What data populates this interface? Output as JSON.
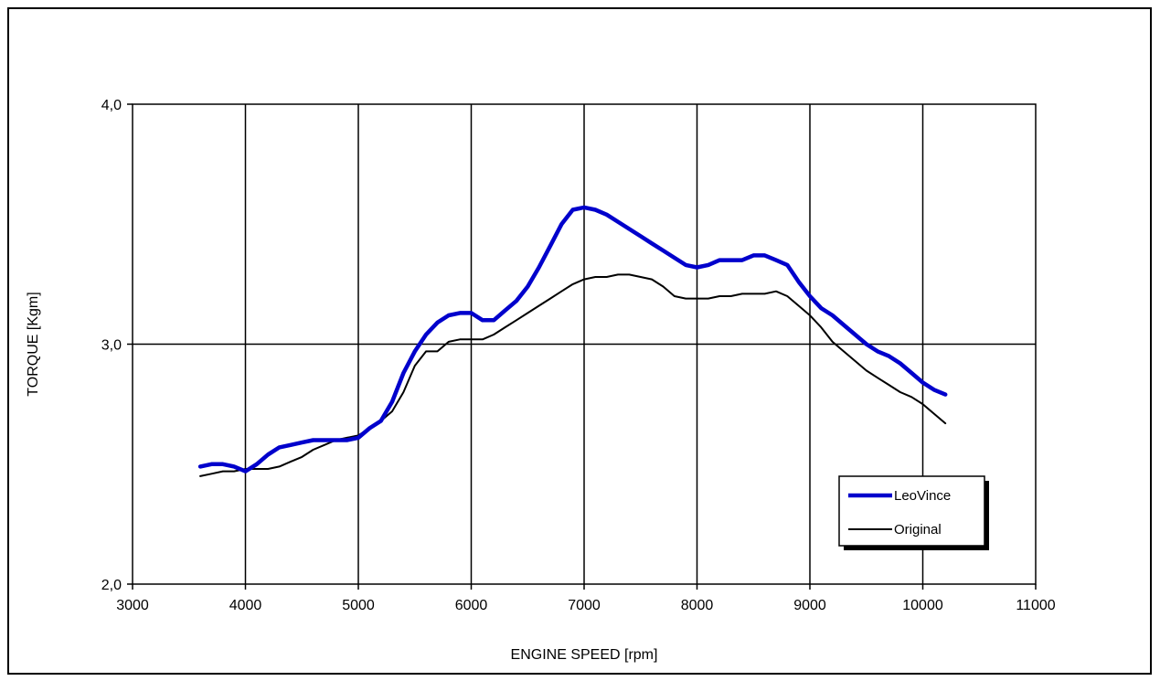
{
  "chart_data": {
    "type": "line",
    "title": "",
    "xlabel": "ENGINE SPEED [rpm]",
    "ylabel": "TORQUE [Kgm]",
    "xlim": [
      3000,
      11000
    ],
    "ylim": [
      2.0,
      4.0
    ],
    "x_ticks": [
      3000,
      4000,
      5000,
      6000,
      7000,
      8000,
      9000,
      10000,
      11000
    ],
    "x_tick_labels": [
      "3000",
      "4000",
      "5000",
      "6000",
      "7000",
      "8000",
      "9000",
      "10000",
      "11000"
    ],
    "y_ticks": [
      2.0,
      3.0,
      4.0
    ],
    "y_tick_labels": [
      "2,0",
      "3,0",
      "4,0"
    ],
    "grid": true,
    "legend_position": "bottom-right",
    "series": [
      {
        "name": "LeoVince",
        "color": "#0000CC",
        "points": [
          [
            3600,
            2.49
          ],
          [
            3700,
            2.5
          ],
          [
            3800,
            2.5
          ],
          [
            3900,
            2.49
          ],
          [
            4000,
            2.47
          ],
          [
            4100,
            2.5
          ],
          [
            4200,
            2.54
          ],
          [
            4300,
            2.57
          ],
          [
            4400,
            2.58
          ],
          [
            4500,
            2.59
          ],
          [
            4600,
            2.6
          ],
          [
            4700,
            2.6
          ],
          [
            4800,
            2.6
          ],
          [
            4900,
            2.6
          ],
          [
            5000,
            2.61
          ],
          [
            5100,
            2.65
          ],
          [
            5200,
            2.68
          ],
          [
            5300,
            2.76
          ],
          [
            5400,
            2.88
          ],
          [
            5500,
            2.97
          ],
          [
            5600,
            3.04
          ],
          [
            5700,
            3.09
          ],
          [
            5800,
            3.12
          ],
          [
            5900,
            3.13
          ],
          [
            6000,
            3.13
          ],
          [
            6100,
            3.1
          ],
          [
            6200,
            3.1
          ],
          [
            6300,
            3.14
          ],
          [
            6400,
            3.18
          ],
          [
            6500,
            3.24
          ],
          [
            6600,
            3.32
          ],
          [
            6700,
            3.41
          ],
          [
            6800,
            3.5
          ],
          [
            6900,
            3.56
          ],
          [
            7000,
            3.57
          ],
          [
            7100,
            3.56
          ],
          [
            7200,
            3.54
          ],
          [
            7300,
            3.51
          ],
          [
            7400,
            3.48
          ],
          [
            7500,
            3.45
          ],
          [
            7600,
            3.42
          ],
          [
            7700,
            3.39
          ],
          [
            7800,
            3.36
          ],
          [
            7900,
            3.33
          ],
          [
            8000,
            3.32
          ],
          [
            8100,
            3.33
          ],
          [
            8200,
            3.35
          ],
          [
            8300,
            3.35
          ],
          [
            8400,
            3.35
          ],
          [
            8500,
            3.37
          ],
          [
            8600,
            3.37
          ],
          [
            8700,
            3.35
          ],
          [
            8800,
            3.33
          ],
          [
            8900,
            3.26
          ],
          [
            9000,
            3.2
          ],
          [
            9100,
            3.15
          ],
          [
            9200,
            3.12
          ],
          [
            9300,
            3.08
          ],
          [
            9400,
            3.04
          ],
          [
            9500,
            3.0
          ],
          [
            9600,
            2.97
          ],
          [
            9700,
            2.95
          ],
          [
            9800,
            2.92
          ],
          [
            9900,
            2.88
          ],
          [
            10000,
            2.84
          ],
          [
            10100,
            2.81
          ],
          [
            10200,
            2.79
          ]
        ]
      },
      {
        "name": "Original",
        "color": "#000000",
        "points": [
          [
            3600,
            2.45
          ],
          [
            3700,
            2.46
          ],
          [
            3800,
            2.47
          ],
          [
            3900,
            2.47
          ],
          [
            4000,
            2.48
          ],
          [
            4100,
            2.48
          ],
          [
            4200,
            2.48
          ],
          [
            4300,
            2.49
          ],
          [
            4400,
            2.51
          ],
          [
            4500,
            2.53
          ],
          [
            4600,
            2.56
          ],
          [
            4700,
            2.58
          ],
          [
            4800,
            2.6
          ],
          [
            4900,
            2.61
          ],
          [
            5000,
            2.62
          ],
          [
            5100,
            2.65
          ],
          [
            5200,
            2.68
          ],
          [
            5300,
            2.72
          ],
          [
            5400,
            2.8
          ],
          [
            5500,
            2.91
          ],
          [
            5600,
            2.97
          ],
          [
            5700,
            2.97
          ],
          [
            5800,
            3.01
          ],
          [
            5900,
            3.02
          ],
          [
            6000,
            3.02
          ],
          [
            6100,
            3.02
          ],
          [
            6200,
            3.04
          ],
          [
            6300,
            3.07
          ],
          [
            6400,
            3.1
          ],
          [
            6500,
            3.13
          ],
          [
            6600,
            3.16
          ],
          [
            6700,
            3.19
          ],
          [
            6800,
            3.22
          ],
          [
            6900,
            3.25
          ],
          [
            7000,
            3.27
          ],
          [
            7100,
            3.28
          ],
          [
            7200,
            3.28
          ],
          [
            7300,
            3.29
          ],
          [
            7400,
            3.29
          ],
          [
            7500,
            3.28
          ],
          [
            7600,
            3.27
          ],
          [
            7700,
            3.24
          ],
          [
            7800,
            3.2
          ],
          [
            7900,
            3.19
          ],
          [
            8000,
            3.19
          ],
          [
            8100,
            3.19
          ],
          [
            8200,
            3.2
          ],
          [
            8300,
            3.2
          ],
          [
            8400,
            3.21
          ],
          [
            8500,
            3.21
          ],
          [
            8600,
            3.21
          ],
          [
            8700,
            3.22
          ],
          [
            8800,
            3.2
          ],
          [
            8900,
            3.16
          ],
          [
            9000,
            3.12
          ],
          [
            9100,
            3.07
          ],
          [
            9200,
            3.01
          ],
          [
            9300,
            2.97
          ],
          [
            9400,
            2.93
          ],
          [
            9500,
            2.89
          ],
          [
            9600,
            2.86
          ],
          [
            9700,
            2.83
          ],
          [
            9800,
            2.8
          ],
          [
            9900,
            2.78
          ],
          [
            10000,
            2.75
          ],
          [
            10100,
            2.71
          ],
          [
            10200,
            2.67
          ]
        ]
      }
    ]
  }
}
